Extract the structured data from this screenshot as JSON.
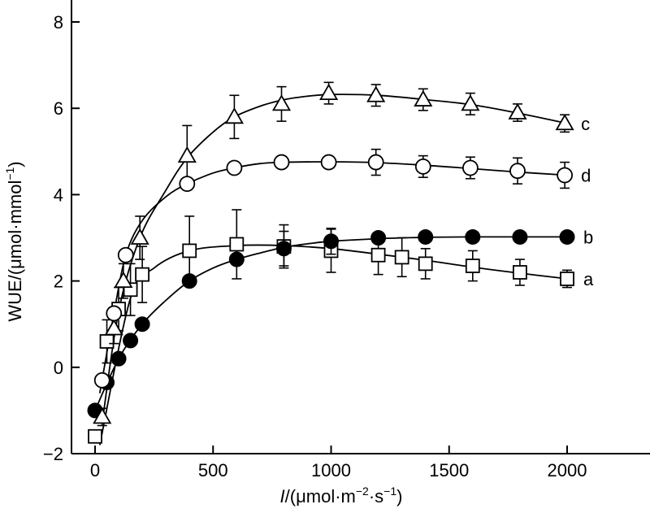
{
  "chart_data": {
    "type": "scatter",
    "title": "",
    "xlabel": {
      "italic": "I",
      "rest": "/(μmol·m",
      "sup1": "−2",
      "mid": "·s",
      "sup2": "−1",
      "end": ")"
    },
    "ylabel": {
      "main": "WUE/(μmol·mmol",
      "sup": "−1",
      "end": ")"
    },
    "xlim": [
      -60,
      2330
    ],
    "ylim": [
      -2,
      8.5
    ],
    "xticks": [
      0,
      500,
      1000,
      1500,
      2000
    ],
    "yticks": [
      -2,
      0,
      2,
      4,
      6,
      8
    ],
    "grid": false,
    "series": [
      {
        "name": "a",
        "marker": "square",
        "points": [
          {
            "x": 0,
            "y": -1.6,
            "err": 0.1
          },
          {
            "x": 50,
            "y": 0.6,
            "err": 0.5
          },
          {
            "x": 100,
            "y": 1.35,
            "err": 0.5
          },
          {
            "x": 150,
            "y": 1.8,
            "err": 0.6
          },
          {
            "x": 200,
            "y": 2.15,
            "err": 0.65
          },
          {
            "x": 400,
            "y": 2.7,
            "err": 0.8
          },
          {
            "x": 600,
            "y": 2.85,
            "err": 0.8
          },
          {
            "x": 800,
            "y": 2.8,
            "err": 0.5
          },
          {
            "x": 1000,
            "y": 2.7,
            "err": 0.5
          },
          {
            "x": 1200,
            "y": 2.6,
            "err": 0.45
          },
          {
            "x": 1300,
            "y": 2.55,
            "err": 0.45
          },
          {
            "x": 1400,
            "y": 2.4,
            "err": 0.35
          },
          {
            "x": 1600,
            "y": 2.35,
            "err": 0.35
          },
          {
            "x": 1800,
            "y": 2.2,
            "err": 0.3
          },
          {
            "x": 2000,
            "y": 2.05,
            "err": 0.2
          }
        ]
      },
      {
        "name": "b",
        "marker": "filled-circle",
        "points": [
          {
            "x": 0,
            "y": -1.0,
            "err": 0
          },
          {
            "x": 50,
            "y": -0.35,
            "err": 0
          },
          {
            "x": 100,
            "y": 0.2,
            "err": 0
          },
          {
            "x": 150,
            "y": 0.62,
            "err": 0
          },
          {
            "x": 200,
            "y": 1.0,
            "err": 0
          },
          {
            "x": 400,
            "y": 2.0,
            "err": 0
          },
          {
            "x": 600,
            "y": 2.5,
            "err": 0
          },
          {
            "x": 800,
            "y": 2.75,
            "err": 0.4
          },
          {
            "x": 1000,
            "y": 2.92,
            "err": 0.3
          },
          {
            "x": 1200,
            "y": 3.0,
            "err": 0
          },
          {
            "x": 1400,
            "y": 3.02,
            "err": 0
          },
          {
            "x": 1600,
            "y": 3.02,
            "err": 0
          },
          {
            "x": 1800,
            "y": 3.02,
            "err": 0
          },
          {
            "x": 2000,
            "y": 3.02,
            "err": 0
          }
        ]
      },
      {
        "name": "c",
        "marker": "triangle",
        "points": [
          {
            "x": 30,
            "y": -1.15,
            "err": 0.2
          },
          {
            "x": 80,
            "y": 0.9,
            "err": 0.35
          },
          {
            "x": 120,
            "y": 2.0,
            "err": 0.4
          },
          {
            "x": 190,
            "y": 3.0,
            "err": 0.5
          },
          {
            "x": 390,
            "y": 4.9,
            "err": 0.7
          },
          {
            "x": 590,
            "y": 5.8,
            "err": 0.5
          },
          {
            "x": 790,
            "y": 6.1,
            "err": 0.4
          },
          {
            "x": 990,
            "y": 6.35,
            "err": 0.25
          },
          {
            "x": 1190,
            "y": 6.3,
            "err": 0.25
          },
          {
            "x": 1390,
            "y": 6.2,
            "err": 0.25
          },
          {
            "x": 1590,
            "y": 6.1,
            "err": 0.25
          },
          {
            "x": 1790,
            "y": 5.9,
            "err": 0.2
          },
          {
            "x": 1990,
            "y": 5.65,
            "err": 0.2
          }
        ]
      },
      {
        "name": "d",
        "marker": "circle",
        "points": [
          {
            "x": 30,
            "y": -0.3,
            "err": 0
          },
          {
            "x": 80,
            "y": 1.25,
            "err": 0
          },
          {
            "x": 130,
            "y": 2.6,
            "err": 0
          },
          {
            "x": 390,
            "y": 4.25,
            "err": 0
          },
          {
            "x": 590,
            "y": 4.62,
            "err": 0
          },
          {
            "x": 790,
            "y": 4.75,
            "err": 0
          },
          {
            "x": 990,
            "y": 4.75,
            "err": 0
          },
          {
            "x": 1190,
            "y": 4.75,
            "err": 0.3
          },
          {
            "x": 1390,
            "y": 4.65,
            "err": 0.25
          },
          {
            "x": 1590,
            "y": 4.62,
            "err": 0.25
          },
          {
            "x": 1790,
            "y": 4.55,
            "err": 0.3
          },
          {
            "x": 1990,
            "y": 4.45,
            "err": 0.3
          }
        ]
      }
    ],
    "curves": [
      {
        "name": "a",
        "points": [
          [
            20,
            -1.8
          ],
          [
            150,
            1.6
          ],
          [
            250,
            2.3
          ],
          [
            400,
            2.7
          ],
          [
            600,
            2.82
          ],
          [
            800,
            2.82
          ],
          [
            1000,
            2.75
          ],
          [
            1200,
            2.62
          ],
          [
            1400,
            2.48
          ],
          [
            1600,
            2.32
          ],
          [
            1800,
            2.18
          ],
          [
            2000,
            2.05
          ]
        ]
      },
      {
        "name": "b",
        "points": [
          [
            0,
            -1.0
          ],
          [
            100,
            0.2
          ],
          [
            200,
            1.0
          ],
          [
            300,
            1.55
          ],
          [
            400,
            2.0
          ],
          [
            500,
            2.3
          ],
          [
            600,
            2.5
          ],
          [
            700,
            2.65
          ],
          [
            800,
            2.78
          ],
          [
            900,
            2.86
          ],
          [
            1000,
            2.92
          ],
          [
            1200,
            2.98
          ],
          [
            1400,
            3.01
          ],
          [
            1600,
            3.02
          ],
          [
            2000,
            3.02
          ]
        ]
      },
      {
        "name": "c",
        "points": [
          [
            30,
            -1.3
          ],
          [
            100,
            1.3
          ],
          [
            190,
            3.0
          ],
          [
            300,
            4.1
          ],
          [
            390,
            4.85
          ],
          [
            500,
            5.45
          ],
          [
            590,
            5.8
          ],
          [
            700,
            6.05
          ],
          [
            800,
            6.2
          ],
          [
            900,
            6.28
          ],
          [
            1000,
            6.32
          ],
          [
            1200,
            6.3
          ],
          [
            1400,
            6.2
          ],
          [
            1600,
            6.08
          ],
          [
            1800,
            5.88
          ],
          [
            2000,
            5.65
          ]
        ]
      },
      {
        "name": "d",
        "points": [
          [
            20,
            -0.6
          ],
          [
            80,
            1.25
          ],
          [
            130,
            2.6
          ],
          [
            200,
            3.4
          ],
          [
            300,
            3.95
          ],
          [
            390,
            4.25
          ],
          [
            500,
            4.5
          ],
          [
            590,
            4.62
          ],
          [
            700,
            4.72
          ],
          [
            800,
            4.75
          ],
          [
            1000,
            4.76
          ],
          [
            1200,
            4.74
          ],
          [
            1400,
            4.68
          ],
          [
            1600,
            4.6
          ],
          [
            1800,
            4.52
          ],
          [
            2000,
            4.45
          ]
        ]
      }
    ],
    "series_labels": [
      {
        "text": "a",
        "series": "a"
      },
      {
        "text": "b",
        "series": "b"
      },
      {
        "text": "c",
        "series": "c"
      },
      {
        "text": "d",
        "series": "d"
      }
    ]
  }
}
